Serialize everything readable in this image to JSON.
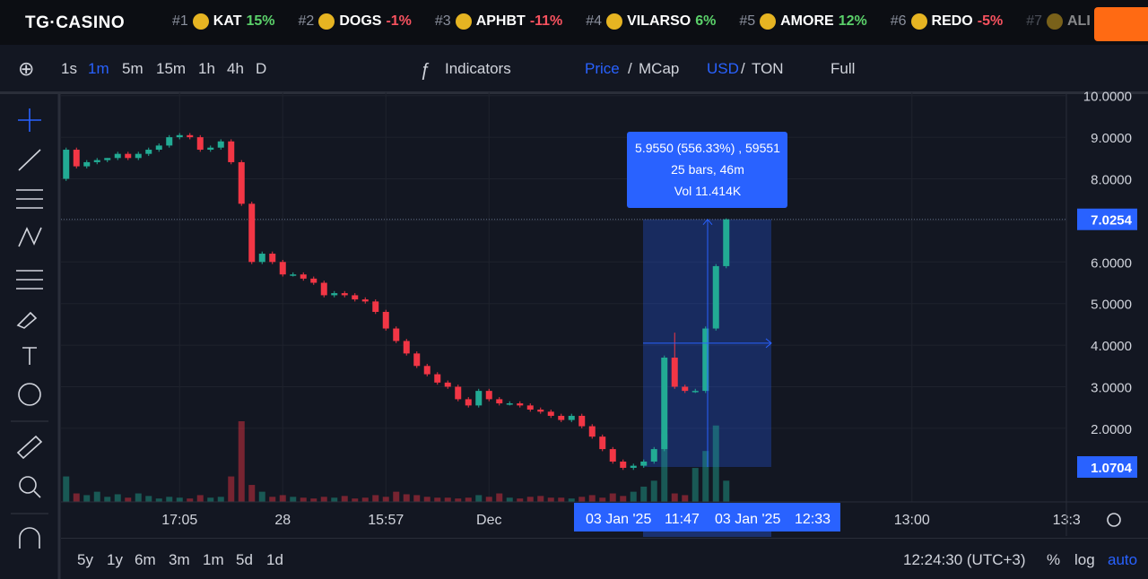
{
  "header": {
    "logo": "TG·CASINO",
    "tickers": [
      {
        "rank": "#1",
        "symbol": "KAT",
        "change": "15%"
      },
      {
        "rank": "#2",
        "symbol": "DOGS",
        "change": "-1%"
      },
      {
        "rank": "#3",
        "symbol": "APHBT",
        "change": "-11%"
      },
      {
        "rank": "#4",
        "symbol": "VILARSO",
        "change": "6%"
      },
      {
        "rank": "#5",
        "symbol": "AMORE",
        "change": "12%"
      },
      {
        "rank": "#6",
        "symbol": "REDO",
        "change": "-5%"
      },
      {
        "rank": "#7",
        "symbol": "ALI"
      }
    ]
  },
  "toolbar": {
    "intervals": [
      "1s",
      "1m",
      "5m",
      "15m",
      "1h",
      "4h",
      "D"
    ],
    "indicators": "Indicators",
    "price": "Price",
    "separator": "/",
    "mcap": "MCap",
    "usd": "USD",
    "ton": "TON",
    "full": "Full"
  },
  "bottom": {
    "ranges": [
      "5y",
      "1y",
      "6m",
      "3m",
      "1m",
      "5d",
      "1d"
    ],
    "clock": "12:24:30 (UTC+3)",
    "percent": "%",
    "log": "log",
    "auto": "auto"
  },
  "chart_data": {
    "type": "candlestick",
    "up_color": "#22ab94",
    "down_color": "#f23645",
    "grid": true,
    "open": [
      8.0,
      8.7,
      8.3,
      8.4,
      8.45,
      8.5,
      8.6,
      8.5,
      8.6,
      8.7,
      8.8,
      9.0,
      9.05,
      9.0,
      8.7,
      8.75,
      8.9,
      8.4,
      7.4,
      6.0,
      6.2,
      6.0,
      5.7,
      5.7,
      5.6,
      5.5,
      5.2,
      5.25,
      5.2,
      5.1,
      5.05,
      4.8,
      4.4,
      4.1,
      3.8,
      3.5,
      3.3,
      3.1,
      3.0,
      2.7,
      2.55,
      2.9,
      2.7,
      2.6,
      2.6,
      2.55,
      2.45,
      2.4,
      2.3,
      2.2,
      2.3,
      2.05,
      1.8,
      1.5,
      1.2,
      1.05,
      1.1,
      1.2,
      1.5,
      3.7,
      3.0,
      2.9,
      2.9,
      4.4,
      5.9
    ],
    "high": [
      8.75,
      8.75,
      8.45,
      8.5,
      8.5,
      8.65,
      8.65,
      8.65,
      8.75,
      8.85,
      9.05,
      9.1,
      9.1,
      9.05,
      8.8,
      8.95,
      8.95,
      8.45,
      7.45,
      6.25,
      6.25,
      6.05,
      5.75,
      5.75,
      5.65,
      5.55,
      5.3,
      5.3,
      5.25,
      5.15,
      5.1,
      4.85,
      4.45,
      4.15,
      3.85,
      3.55,
      3.35,
      3.15,
      3.05,
      2.75,
      2.95,
      2.95,
      2.75,
      2.65,
      2.65,
      2.6,
      2.5,
      2.45,
      2.35,
      2.35,
      2.35,
      2.1,
      1.85,
      1.55,
      1.25,
      1.15,
      1.25,
      1.55,
      3.75,
      4.3,
      3.05,
      2.95,
      4.45,
      5.95,
      7.05
    ],
    "low": [
      7.95,
      8.25,
      8.25,
      8.35,
      8.4,
      8.45,
      8.45,
      8.45,
      8.55,
      8.65,
      8.75,
      8.95,
      8.95,
      8.65,
      8.65,
      8.7,
      8.35,
      7.35,
      5.95,
      5.95,
      5.95,
      5.65,
      5.65,
      5.55,
      5.45,
      5.15,
      5.15,
      5.15,
      5.05,
      5.0,
      4.75,
      4.35,
      4.05,
      3.75,
      3.45,
      3.25,
      3.05,
      2.95,
      2.65,
      2.5,
      2.5,
      2.65,
      2.55,
      2.55,
      2.5,
      2.4,
      2.35,
      2.25,
      2.15,
      2.15,
      2.0,
      1.75,
      1.45,
      1.15,
      1.0,
      1.0,
      1.05,
      1.15,
      1.45,
      2.95,
      2.85,
      2.85,
      2.85,
      4.35,
      5.85
    ],
    "close": [
      8.7,
      8.3,
      8.4,
      8.45,
      8.5,
      8.6,
      8.5,
      8.6,
      8.7,
      8.8,
      9.0,
      9.05,
      9.0,
      8.7,
      8.75,
      8.9,
      8.4,
      7.4,
      6.0,
      6.2,
      6.0,
      5.7,
      5.7,
      5.6,
      5.5,
      5.2,
      5.25,
      5.2,
      5.1,
      5.05,
      4.8,
      4.4,
      4.1,
      3.8,
      3.5,
      3.3,
      3.1,
      3.0,
      2.7,
      2.55,
      2.9,
      2.7,
      2.6,
      2.6,
      2.55,
      2.45,
      2.4,
      2.3,
      2.2,
      2.3,
      2.05,
      1.8,
      1.5,
      1.2,
      1.05,
      1.1,
      1.2,
      1.5,
      3.7,
      3.0,
      2.9,
      2.9,
      4.4,
      5.9,
      7.0254
    ],
    "volume": [
      30,
      10,
      8,
      12,
      6,
      9,
      5,
      10,
      7,
      4,
      6,
      5,
      4,
      8,
      5,
      6,
      30,
      95,
      20,
      12,
      6,
      8,
      6,
      5,
      4,
      6,
      5,
      7,
      4,
      5,
      8,
      6,
      12,
      9,
      8,
      6,
      5,
      5,
      4,
      5,
      8,
      6,
      10,
      5,
      4,
      6,
      7,
      5,
      5,
      4,
      6,
      8,
      5,
      10,
      7,
      12,
      18,
      25,
      80,
      10,
      8,
      40,
      60,
      90,
      25
    ],
    "ylim": [
      0.23,
      10.08
    ],
    "yticks": [
      {
        "value": 2,
        "label": "2.0000"
      },
      {
        "value": 3,
        "label": "3.0000"
      },
      {
        "value": 4,
        "label": "4.0000"
      },
      {
        "value": 5,
        "label": "5.0000"
      },
      {
        "value": 6,
        "label": "6.0000"
      },
      {
        "value": 7,
        "label": "7.0000"
      },
      {
        "value": 8,
        "label": "8.0000"
      },
      {
        "value": 9,
        "label": "9.0000"
      },
      {
        "value": 10,
        "label": "10.0000"
      }
    ],
    "xlim": [
      -0.5,
      97.5
    ],
    "xticks": [
      {
        "value": 11,
        "label": "17:05"
      },
      {
        "value": 21,
        "label": "28"
      },
      {
        "value": 31,
        "label": "15:57"
      },
      {
        "value": 41,
        "label": "Dec"
      },
      {
        "value": 82,
        "label": "13:00"
      },
      {
        "value": 97,
        "label": "13:3"
      }
    ],
    "measure": {
      "change": "5.9550 (556.33%) , 59551",
      "bars": "25 bars, 46m",
      "vol": "Vol 11.414K",
      "from_price": 1.0704,
      "to_price": 7.0254,
      "from_date": "03 Jan '25",
      "from_time": "11:47",
      "to_date": "03 Jan '25",
      "to_time": "12:33"
    }
  }
}
